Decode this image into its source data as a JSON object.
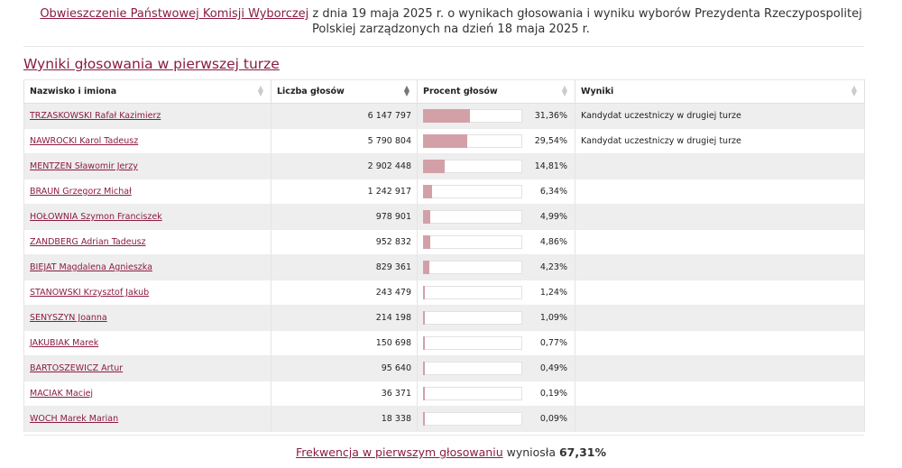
{
  "notice": {
    "link_text": "Obwieszczenie Państwowej Komisji Wyborczej",
    "rest_text": " z dnia 19 maja 2025 r. o wynikach głosowania i wyniku wyborów Prezydenta Rzeczypospolitej Polskiej zarządzonych na dzień 18 maja 2025 r."
  },
  "section_title": "Wyniki głosowania w pierwszej turze",
  "columns": {
    "name": "Nazwisko i imiona",
    "votes": "Liczba głosów",
    "percent": "Procent głosów",
    "results": "Wyniki"
  },
  "rows": [
    {
      "name": "TRZASKOWSKI Rafał Kazimierz",
      "votes": "6 147 797",
      "percent": "31,36%",
      "pct_value": 31.36,
      "result": "Kandydat uczestniczy w drugiej turze"
    },
    {
      "name": "NAWROCKI Karol Tadeusz",
      "votes": "5 790 804",
      "percent": "29,54%",
      "pct_value": 29.54,
      "result": "Kandydat uczestniczy w drugiej turze"
    },
    {
      "name": "MENTZEN Sławomir Jerzy",
      "votes": "2 902 448",
      "percent": "14,81%",
      "pct_value": 14.81,
      "result": ""
    },
    {
      "name": "BRAUN Grzegorz Michał",
      "votes": "1 242 917",
      "percent": "6,34%",
      "pct_value": 6.34,
      "result": ""
    },
    {
      "name": "HOŁOWNIA Szymon Franciszek",
      "votes": "978 901",
      "percent": "4,99%",
      "pct_value": 4.99,
      "result": ""
    },
    {
      "name": "ZANDBERG Adrian Tadeusz",
      "votes": "952 832",
      "percent": "4,86%",
      "pct_value": 4.86,
      "result": ""
    },
    {
      "name": "BIEJAT Magdalena Agnieszka",
      "votes": "829 361",
      "percent": "4,23%",
      "pct_value": 4.23,
      "result": ""
    },
    {
      "name": "STANOWSKI Krzysztof Jakub",
      "votes": "243 479",
      "percent": "1,24%",
      "pct_value": 1.24,
      "result": ""
    },
    {
      "name": "SENYSZYN Joanna",
      "votes": "214 198",
      "percent": "1,09%",
      "pct_value": 1.09,
      "result": ""
    },
    {
      "name": "JAKUBIAK Marek",
      "votes": "150 698",
      "percent": "0,77%",
      "pct_value": 0.77,
      "result": ""
    },
    {
      "name": "BARTOSZEWICZ Artur",
      "votes": "95 640",
      "percent": "0,49%",
      "pct_value": 0.49,
      "result": ""
    },
    {
      "name": "MACIAK Maciej",
      "votes": "36 371",
      "percent": "0,19%",
      "pct_value": 0.19,
      "result": ""
    },
    {
      "name": "WOCH Marek Marian",
      "votes": "18 338",
      "percent": "0,09%",
      "pct_value": 0.09,
      "result": ""
    }
  ],
  "footer": {
    "link_text": "Frekwencja w pierwszym głosowaniu",
    "middle_text": " wyniosła ",
    "value": "67,31%"
  },
  "colors": {
    "link": "#8b1c3f",
    "bar": "#d4a0a8",
    "row_alt": "#eeeeee"
  },
  "icons": {
    "sort": "sort-icon",
    "sort_active": "sort-desc-icon"
  }
}
